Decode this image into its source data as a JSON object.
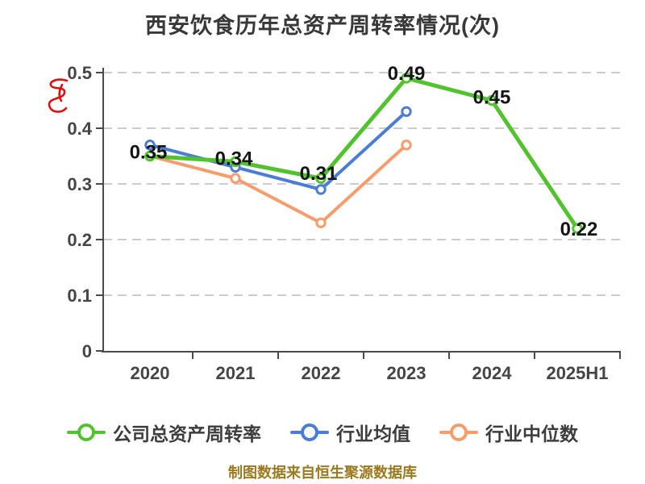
{
  "title": "西安饮食历年总资产周转率情况(次)",
  "caption": "制图数据来自恒生聚源数据库",
  "watermark": {
    "color": "#dd1111"
  },
  "chart_data": {
    "type": "line",
    "title": "西安饮食历年总资产周转率情况(次)",
    "categories": [
      "2020",
      "2021",
      "2022",
      "2023",
      "2024",
      "2025H1"
    ],
    "series": [
      {
        "name": "公司总资产周转率",
        "color": "#52c22e",
        "values": [
          0.35,
          0.34,
          0.31,
          0.49,
          0.45,
          0.22
        ],
        "point_labels": [
          "0.35",
          "0.34",
          "0.31",
          "0.49",
          "0.45",
          "0.22"
        ]
      },
      {
        "name": "行业均值",
        "color": "#4a7dd8",
        "values": [
          0.37,
          0.33,
          0.29,
          0.43,
          null,
          null
        ]
      },
      {
        "name": "行业中位数",
        "color": "#f89c6c",
        "values": [
          0.35,
          0.31,
          0.23,
          0.37,
          null,
          null
        ]
      }
    ],
    "ylim": [
      0,
      0.5
    ],
    "yticks": [
      0,
      0.1,
      0.2,
      0.3,
      0.4,
      0.5
    ],
    "grid": "horizontal-dashed",
    "legend_position": "bottom",
    "axis_color": "#4a4a4a",
    "grid_color": "#cccccc",
    "tick_label_color": "#454545",
    "value_label_color": "#151515"
  }
}
